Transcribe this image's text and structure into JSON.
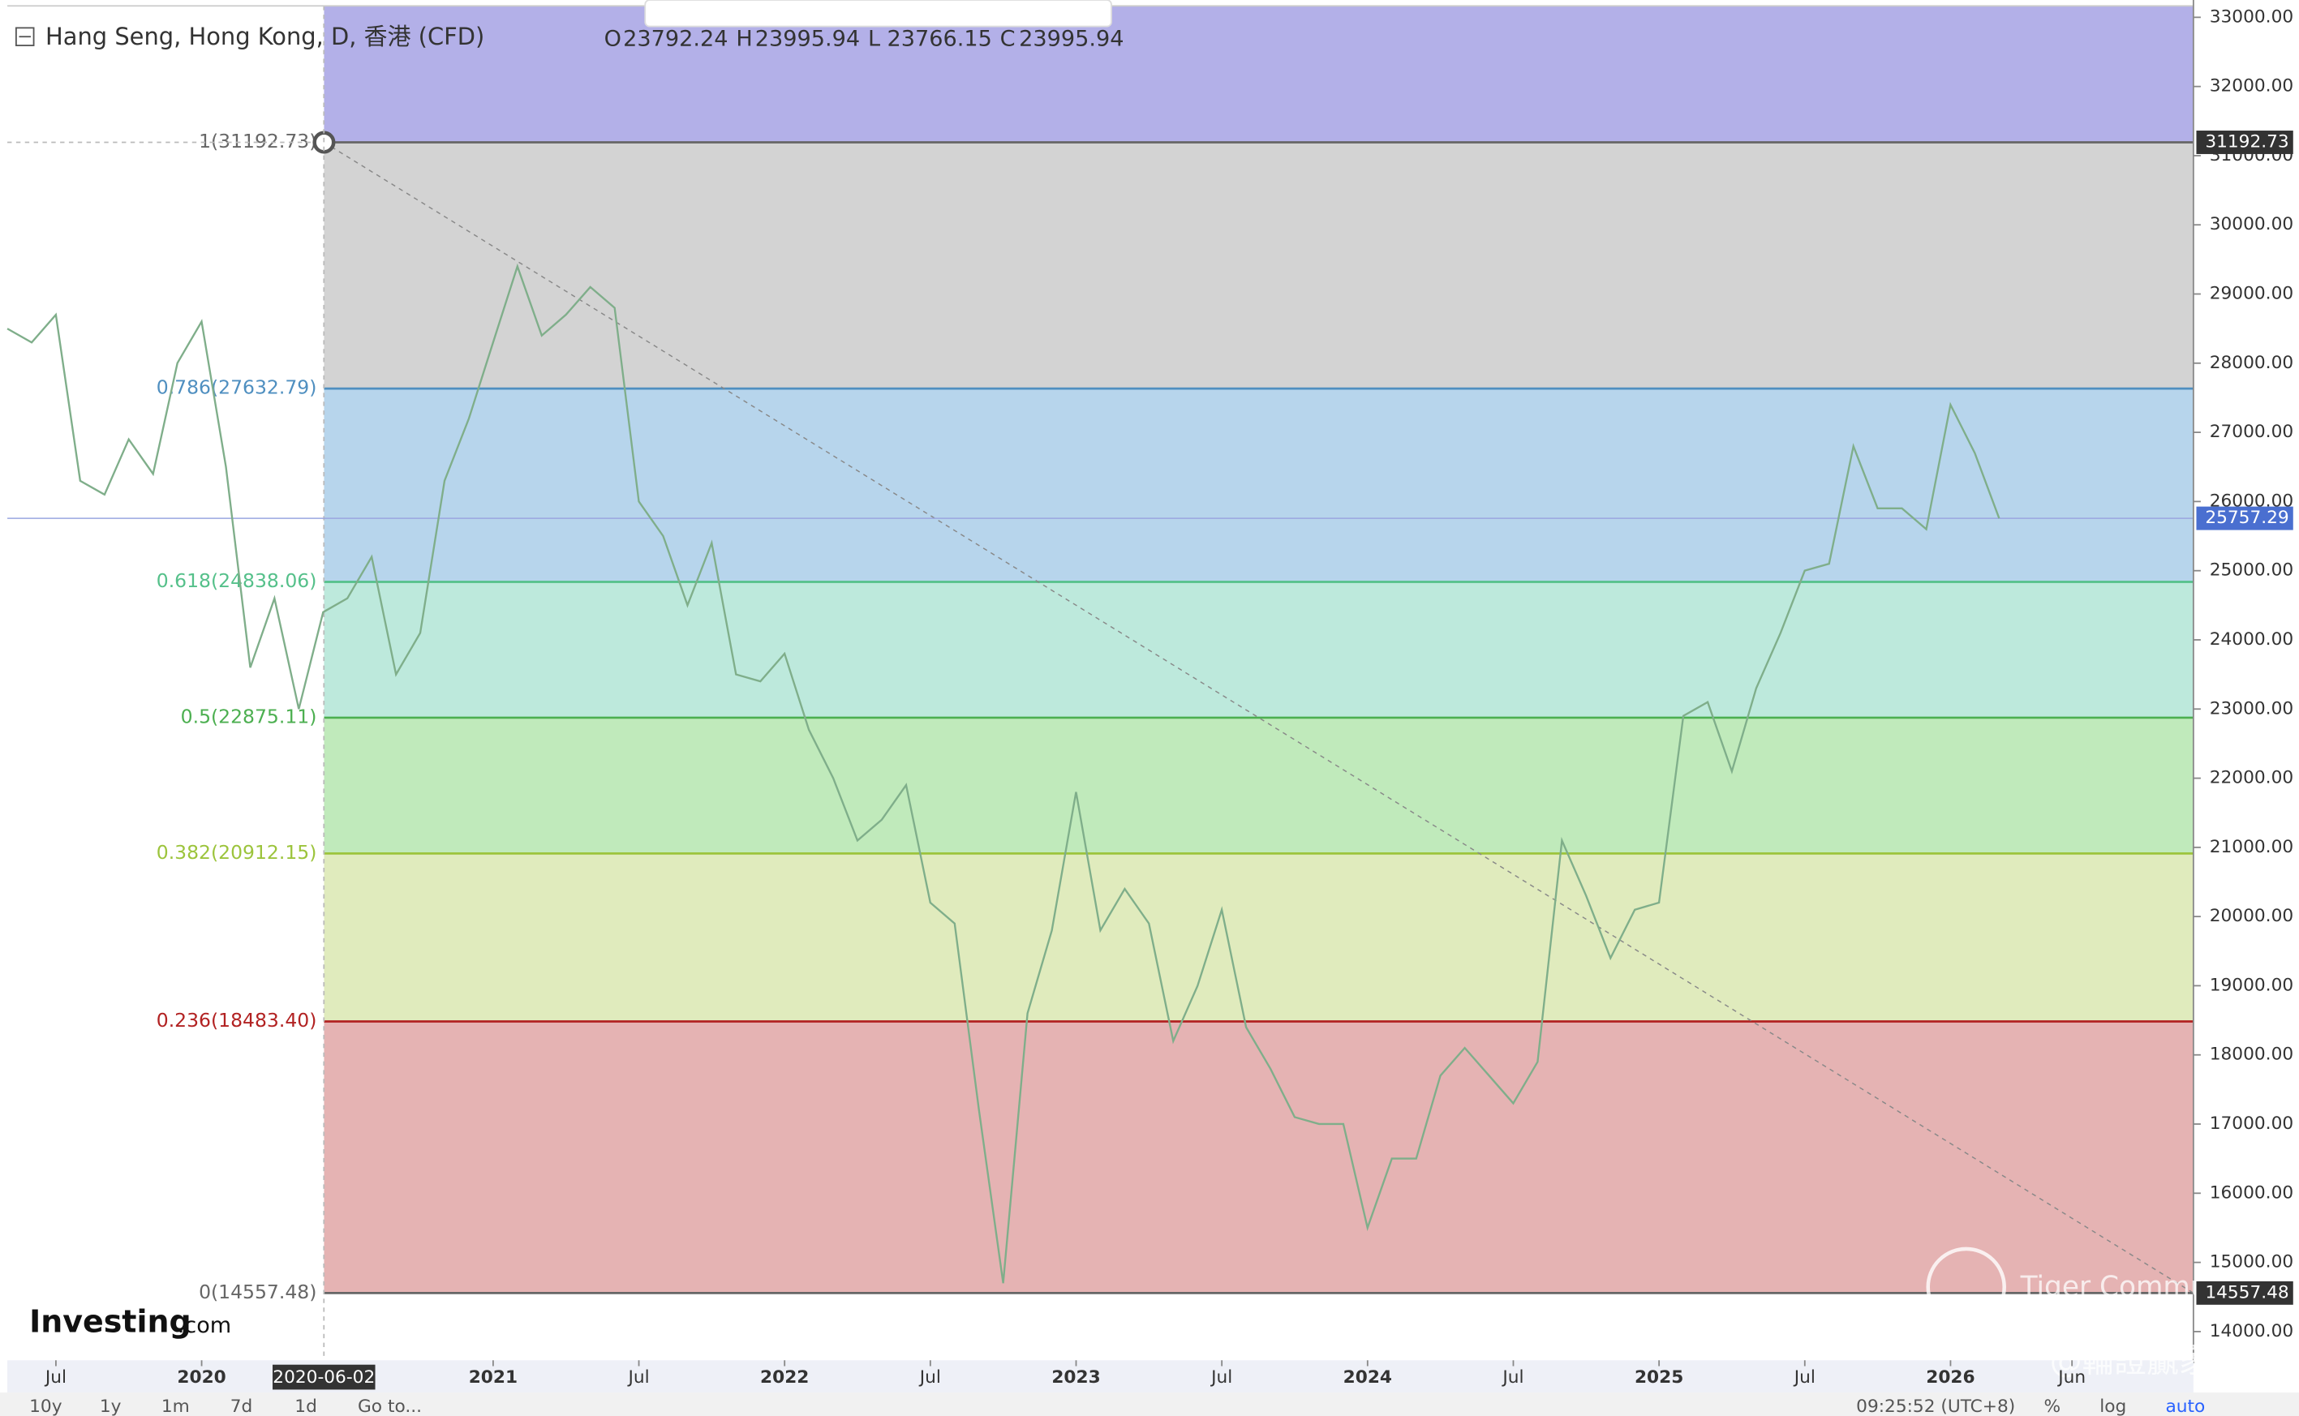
{
  "header": {
    "title": "Hang Seng, Hong Kong, D, 香港 (CFD)",
    "ohlc": [
      {
        "key": "O",
        "value": 23792.24
      },
      {
        "key": "H",
        "value": 23995.94
      },
      {
        "key": "L",
        "value": 23766.15
      },
      {
        "key": "C",
        "value": 23995.94
      }
    ]
  },
  "chart_data": {
    "type": "line",
    "color": "#7fae8a",
    "x": [
      "2019-05",
      "2019-06",
      "2019-07",
      "2019-08",
      "2019-09",
      "2019-10",
      "2019-11",
      "2019-12",
      "2020-01",
      "2020-02",
      "2020-03",
      "2020-04",
      "2020-05",
      "2020-06",
      "2020-07",
      "2020-08",
      "2020-09",
      "2020-10",
      "2020-11",
      "2020-12",
      "2021-01",
      "2021-02",
      "2021-03",
      "2021-04",
      "2021-05",
      "2021-06",
      "2021-07",
      "2021-08",
      "2021-09",
      "2021-10",
      "2021-11",
      "2021-12",
      "2022-01",
      "2022-02",
      "2022-03",
      "2022-04",
      "2022-05",
      "2022-06",
      "2022-07",
      "2022-08",
      "2022-09",
      "2022-10",
      "2022-11",
      "2022-12",
      "2023-01",
      "2023-02",
      "2023-03",
      "2023-04",
      "2023-05",
      "2023-06",
      "2023-07",
      "2023-08",
      "2023-09",
      "2023-10",
      "2023-11",
      "2023-12",
      "2024-01",
      "2024-02",
      "2024-03",
      "2024-04",
      "2024-05",
      "2024-06",
      "2024-07",
      "2024-08",
      "2024-09",
      "2024-10",
      "2024-11",
      "2024-12",
      "2025-01",
      "2025-02",
      "2025-03",
      "2025-04",
      "2025-05",
      "2025-06",
      "2025-07",
      "2025-08",
      "2025-09",
      "2025-10",
      "2025-11",
      "2025-12",
      "2026-01",
      "2026-02",
      "2026-03"
    ],
    "values": [
      28500,
      28300,
      28700,
      26300,
      26100,
      26900,
      26400,
      28000,
      28600,
      26500,
      23600,
      24600,
      23000,
      24400,
      24600,
      25200,
      23500,
      24100,
      26300,
      27200,
      28300,
      29400,
      28400,
      28700,
      29100,
      28800,
      26000,
      25500,
      24500,
      25400,
      23500,
      23400,
      23800,
      22700,
      22000,
      21100,
      21400,
      21900,
      20200,
      19900,
      17200,
      14700,
      18600,
      19800,
      21800,
      19800,
      20400,
      19900,
      18200,
      19000,
      20100,
      18400,
      17800,
      17100,
      17000,
      17000,
      15500,
      16500,
      16500,
      17700,
      18100,
      17700,
      17300,
      17900,
      21100,
      20300,
      19400,
      20100,
      20200,
      22900,
      23100,
      22100,
      23300,
      24100,
      25000,
      25100,
      26800,
      25900,
      25900,
      25600,
      27400,
      26700,
      25757
    ],
    "xlim": [
      "2019-05",
      "2026-11"
    ],
    "xticks": [
      {
        "value": "2019-07",
        "label": "Jul"
      },
      {
        "value": "2020-01",
        "label": "2020"
      },
      {
        "value": "2021-01",
        "label": "2021"
      },
      {
        "value": "2021-07",
        "label": "Jul"
      },
      {
        "value": "2022-01",
        "label": "2022"
      },
      {
        "value": "2022-07",
        "label": "Jul"
      },
      {
        "value": "2023-01",
        "label": "2023"
      },
      {
        "value": "2023-07",
        "label": "Jul"
      },
      {
        "value": "2024-01",
        "label": "2024"
      },
      {
        "value": "2024-07",
        "label": "Jul"
      },
      {
        "value": "2025-01",
        "label": "2025"
      },
      {
        "value": "2025-07",
        "label": "Jul"
      },
      {
        "value": "2026-01",
        "label": "2026"
      },
      {
        "value": "2026-06",
        "label": "Jun"
      }
    ],
    "crosshair_date": "2020-06-02",
    "ylim": [
      13585,
      33250
    ],
    "yticks": [
      {
        "value": 33000,
        "label": "33000.00"
      },
      {
        "value": 32000,
        "label": "32000.00"
      },
      {
        "value": 31000,
        "label": "31000.00"
      },
      {
        "value": 30000,
        "label": "30000.00"
      },
      {
        "value": 29000,
        "label": "29000.00"
      },
      {
        "value": 28000,
        "label": "28000.00"
      },
      {
        "value": 27000,
        "label": "27000.00"
      },
      {
        "value": 26000,
        "label": "26000.00"
      },
      {
        "value": 25000,
        "label": "25000.00"
      },
      {
        "value": 24000,
        "label": "24000.00"
      },
      {
        "value": 23000,
        "label": "23000.00"
      },
      {
        "value": 22000,
        "label": "22000.00"
      },
      {
        "value": 21000,
        "label": "21000.00"
      },
      {
        "value": 20000,
        "label": "20000.00"
      },
      {
        "value": 19000,
        "label": "19000.00"
      },
      {
        "value": 18000,
        "label": "18000.00"
      },
      {
        "value": 17000,
        "label": "17000.00"
      },
      {
        "value": 16000,
        "label": "16000.00"
      },
      {
        "value": 15000,
        "label": "15000.00"
      },
      {
        "value": 14000,
        "label": "14000.00"
      }
    ],
    "fib_levels": [
      {
        "label": "1(31192.73)",
        "price": 31192.73,
        "color": "#666666",
        "fill": "#d3d3d3"
      },
      {
        "label": "0.786(27632.79)",
        "price": 27632.79,
        "color": "#4f8fc0",
        "fill": "#b7d5ec"
      },
      {
        "label": "0.618(24838.06)",
        "price": 24838.06,
        "color": "#55c08a",
        "fill": "#bde9dc"
      },
      {
        "label": "0.5(22875.11)",
        "price": 22875.11,
        "color": "#4caf50",
        "fill": "#c0eabb"
      },
      {
        "label": "0.382(20912.15)",
        "price": 20912.15,
        "color": "#9cc43c",
        "fill": "#e0ebbd"
      },
      {
        "label": "0.236(18483.40)",
        "price": 18483.4,
        "color": "#b22222",
        "fill": "#e5b3b3"
      },
      {
        "label": "0(14557.48)",
        "price": 14557.48,
        "color": "#666666",
        "fill": null
      }
    ],
    "extension_fill": "#b3b0e8",
    "badges": [
      {
        "value": 31192.73,
        "color": "#333333"
      },
      {
        "value": 25757.29,
        "color": "#4a6fd0"
      },
      {
        "value": 14557.48,
        "color": "#333333"
      }
    ]
  },
  "toolbar": {
    "ranges": [
      "10y",
      "1y",
      "1m",
      "7d",
      "1d"
    ],
    "goto": "Go to...",
    "time": "09:25:52 (UTC+8)",
    "options": [
      "%",
      "log",
      "auto"
    ]
  },
  "logo": {
    "brand": "Investing",
    "suffix": ".com"
  },
  "watermark": {
    "community": "Tiger Community",
    "handle": "@輪證贏家"
  }
}
